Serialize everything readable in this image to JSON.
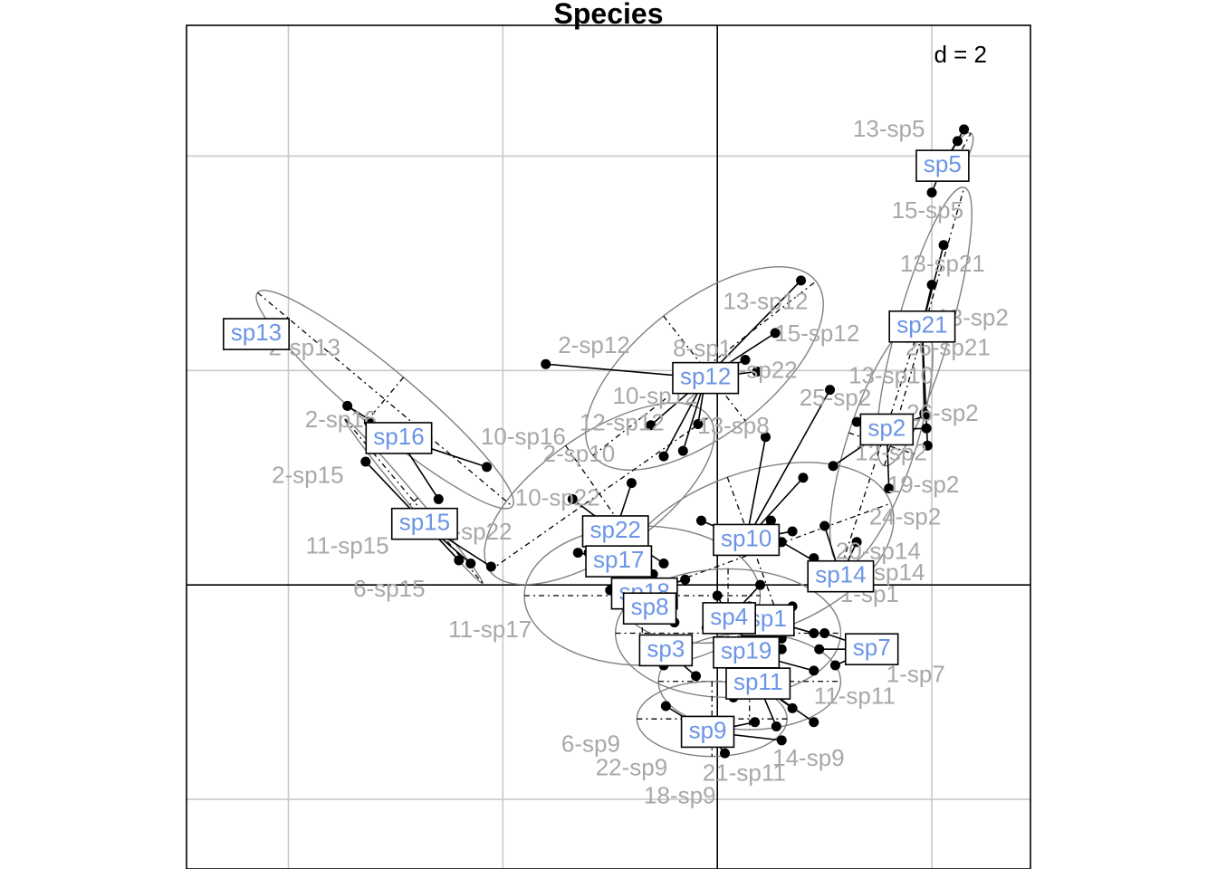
{
  "chart_data": {
    "type": "scatter",
    "title": "Species",
    "scale_label": "d = 2",
    "xlim": [
      -4.95,
      2.92
    ],
    "ylim": [
      -2.65,
      5.22
    ],
    "grid": true,
    "grid_step": 2,
    "colors": {
      "species_label": "#6b95e6",
      "point_label": "#a8a8a8",
      "ellipse": "#808080",
      "grid": "#c8c8c8"
    },
    "ellipses": [
      {
        "name": "sp5",
        "cx": 2.26,
        "cy": 4.02,
        "rx": 0.22,
        "ry": 0.08,
        "angle": 62
      },
      {
        "name": "sp21",
        "cx": 1.93,
        "cy": 2.41,
        "rx": 1.35,
        "ry": 0.25,
        "angle": 74
      },
      {
        "name": "sp12",
        "cx": -0.12,
        "cy": 2.02,
        "rx": 1.32,
        "ry": 0.62,
        "angle": 38
      },
      {
        "name": "sp16",
        "cx": -3.1,
        "cy": 1.73,
        "rx": 1.55,
        "ry": 0.27,
        "angle": -40
      },
      {
        "name": "sp15",
        "cx": -2.83,
        "cy": 0.78,
        "rx": 1.0,
        "ry": 0.05,
        "angle": -50
      },
      {
        "name": "sp2",
        "cx": 1.53,
        "cy": 1.32,
        "rx": 1.2,
        "ry": 0.32,
        "angle": 72
      },
      {
        "name": "sp10",
        "cx": 0.35,
        "cy": 0.3,
        "rx": 1.35,
        "ry": 0.75,
        "angle": 20
      },
      {
        "name": "sp22",
        "cx": -1.1,
        "cy": 0.85,
        "rx": 1.25,
        "ry": 0.55,
        "angle": 35
      },
      {
        "name": "sp18",
        "cx": -0.7,
        "cy": -0.1,
        "rx": 1.1,
        "ry": 0.65,
        "angle": 0
      },
      {
        "name": "sp4",
        "cx": 0.1,
        "cy": -0.45,
        "rx": 1.05,
        "ry": 0.6,
        "angle": 0
      },
      {
        "name": "sp11",
        "cx": 0.3,
        "cy": -0.9,
        "rx": 0.85,
        "ry": 0.45,
        "angle": 0
      },
      {
        "name": "sp9",
        "cx": -0.05,
        "cy": -1.25,
        "rx": 0.7,
        "ry": 0.35,
        "angle": 0
      }
    ],
    "species": [
      {
        "name": "sp5",
        "x": 2.1,
        "y": 3.91,
        "points": [
          [
            2.24,
            4.14
          ],
          [
            2.0,
            3.66
          ],
          [
            2.3,
            4.25
          ]
        ]
      },
      {
        "name": "sp13",
        "x": -4.3,
        "y": 2.34,
        "points": []
      },
      {
        "name": "sp21",
        "x": 1.91,
        "y": 2.41,
        "points": [
          [
            2.11,
            3.17
          ],
          [
            1.93,
            1.6
          ],
          [
            1.96,
            1.3
          ],
          [
            2.0,
            2.8
          ]
        ]
      },
      {
        "name": "sp12",
        "x": -0.11,
        "y": 1.93,
        "points": [
          [
            -1.6,
            2.06
          ],
          [
            0.78,
            2.84
          ],
          [
            0.54,
            2.35
          ],
          [
            0.37,
            1.99
          ],
          [
            -0.62,
            1.49
          ],
          [
            -0.32,
            1.25
          ],
          [
            -0.18,
            1.5
          ],
          [
            -0.5,
            1.2
          ],
          [
            0.26,
            2.1
          ]
        ]
      },
      {
        "name": "sp16",
        "x": -2.97,
        "y": 1.37,
        "points": [
          [
            -3.45,
            1.67
          ],
          [
            -3.25,
            1.52
          ],
          [
            -2.15,
            1.1
          ],
          [
            -2.6,
            0.8
          ]
        ]
      },
      {
        "name": "sp15",
        "x": -2.73,
        "y": 0.57,
        "points": [
          [
            -3.28,
            1.15
          ],
          [
            -2.41,
            0.23
          ],
          [
            -2.11,
            0.17
          ],
          [
            -2.3,
            0.2
          ]
        ]
      },
      {
        "name": "sp2",
        "x": 1.58,
        "y": 1.45,
        "points": [
          [
            1.3,
            1.52
          ],
          [
            1.94,
            1.58
          ],
          [
            1.95,
            1.46
          ],
          [
            1.08,
            1.11
          ],
          [
            1.6,
            0.9
          ]
        ]
      },
      {
        "name": "sp10",
        "x": 0.27,
        "y": 0.42,
        "points": [
          [
            1.05,
            1.82
          ],
          [
            0.45,
            1.38
          ],
          [
            0.8,
            1.0
          ],
          [
            0.5,
            0.6
          ],
          [
            -0.15,
            0.6
          ],
          [
            0.7,
            0.5
          ]
        ]
      },
      {
        "name": "sp22",
        "x": -0.95,
        "y": 0.5,
        "points": [
          [
            -1.35,
            0.8
          ],
          [
            -0.8,
            0.95
          ],
          [
            -1.2,
            0.3
          ],
          [
            -0.5,
            0.2
          ]
        ]
      },
      {
        "name": "sp17",
        "x": -0.92,
        "y": 0.22,
        "points": [
          [
            -1.3,
            0.3
          ],
          [
            -0.6,
            0.1
          ],
          [
            -1.0,
            -0.05
          ]
        ]
      },
      {
        "name": "sp14",
        "x": 1.15,
        "y": 0.08,
        "points": [
          [
            1.0,
            0.55
          ],
          [
            0.6,
            0.4
          ],
          [
            0.9,
            0.25
          ],
          [
            1.3,
            0.4
          ]
        ]
      },
      {
        "name": "sp18",
        "x": -0.68,
        "y": -0.08,
        "points": [
          [
            -0.5,
            -0.05
          ],
          [
            -0.3,
            0.05
          ],
          [
            -0.55,
            -0.3
          ]
        ]
      },
      {
        "name": "sp8",
        "x": -0.63,
        "y": -0.22,
        "points": [
          [
            -0.45,
            -0.15
          ],
          [
            -0.4,
            -0.35
          ]
        ]
      },
      {
        "name": "sp1",
        "x": 0.47,
        "y": -0.33,
        "points": [
          [
            0.7,
            -0.2
          ],
          [
            0.9,
            -0.45
          ],
          [
            0.6,
            -0.5
          ]
        ]
      },
      {
        "name": "sp4",
        "x": 0.11,
        "y": -0.31,
        "points": [
          [
            0.0,
            -0.1
          ],
          [
            0.3,
            -0.2
          ],
          [
            -0.1,
            -0.4
          ],
          [
            0.4,
            0.0
          ]
        ]
      },
      {
        "name": "sp3",
        "x": -0.48,
        "y": -0.61,
        "points": [
          [
            -0.3,
            -0.55
          ],
          [
            -0.2,
            -0.85
          ],
          [
            -0.5,
            -0.75
          ]
        ]
      },
      {
        "name": "sp19",
        "x": 0.27,
        "y": -0.63,
        "points": [
          [
            0.6,
            -0.6
          ],
          [
            0.9,
            -0.8
          ],
          [
            0.1,
            -0.55
          ]
        ]
      },
      {
        "name": "sp7",
        "x": 1.44,
        "y": -0.6,
        "points": [
          [
            1.0,
            -0.45
          ],
          [
            1.1,
            -0.75
          ],
          [
            0.95,
            -0.6
          ]
        ]
      },
      {
        "name": "sp11",
        "x": 0.38,
        "y": -0.92,
        "points": [
          [
            0.7,
            -1.15
          ],
          [
            0.9,
            -1.28
          ],
          [
            0.15,
            -1.05
          ],
          [
            0.55,
            -1.32
          ]
        ]
      },
      {
        "name": "sp9",
        "x": -0.09,
        "y": -1.37,
        "points": [
          [
            -0.48,
            -1.13
          ],
          [
            0.07,
            -1.57
          ],
          [
            0.35,
            -1.28
          ],
          [
            0.6,
            -1.45
          ]
        ]
      }
    ],
    "point_labels": [
      {
        "text": "13-sp5",
        "x": 1.6,
        "y": 4.24
      },
      {
        "text": "15-sp5",
        "x": 1.96,
        "y": 3.48
      },
      {
        "text": "13-sp21",
        "x": 2.1,
        "y": 2.98
      },
      {
        "text": "13-sp12",
        "x": 0.45,
        "y": 2.63
      },
      {
        "text": "13-sp2",
        "x": 2.38,
        "y": 2.48
      },
      {
        "text": "15-sp12",
        "x": 0.93,
        "y": 2.33
      },
      {
        "text": "2-sp13",
        "x": -3.85,
        "y": 2.2
      },
      {
        "text": "2-sp12",
        "x": -1.15,
        "y": 2.22
      },
      {
        "text": "8-sp1",
        "x": -0.14,
        "y": 2.19
      },
      {
        "text": "26-sp21",
        "x": 2.15,
        "y": 2.2
      },
      {
        "text": "13-sp22",
        "x": 0.35,
        "y": 1.99
      },
      {
        "text": "13-sp10",
        "x": 1.62,
        "y": 1.94
      },
      {
        "text": "10-sp12",
        "x": -0.58,
        "y": 1.75
      },
      {
        "text": "25-sp2",
        "x": 1.1,
        "y": 1.73
      },
      {
        "text": "2-sp16",
        "x": -3.51,
        "y": 1.53
      },
      {
        "text": "26-sp2",
        "x": 2.1,
        "y": 1.59
      },
      {
        "text": "12-sp12",
        "x": -0.89,
        "y": 1.5
      },
      {
        "text": "13-sp8",
        "x": 0.15,
        "y": 1.47
      },
      {
        "text": "10-sp16",
        "x": -1.81,
        "y": 1.37
      },
      {
        "text": "2-sp15",
        "x": -3.82,
        "y": 1.01
      },
      {
        "text": "2-sp10",
        "x": -1.29,
        "y": 1.21
      },
      {
        "text": "12-sp2",
        "x": 1.62,
        "y": 1.22
      },
      {
        "text": "19-sp2",
        "x": 1.92,
        "y": 0.92
      },
      {
        "text": "10-sp22",
        "x": -1.49,
        "y": 0.8
      },
      {
        "text": "2-sp22",
        "x": -2.25,
        "y": 0.48
      },
      {
        "text": "24-sp2",
        "x": 1.75,
        "y": 0.62
      },
      {
        "text": "11-sp15",
        "x": -3.45,
        "y": 0.35
      },
      {
        "text": "20-sp14",
        "x": 1.5,
        "y": 0.3
      },
      {
        "text": "1-sp14",
        "x": 1.6,
        "y": 0.1
      },
      {
        "text": "6-sp15",
        "x": -3.06,
        "y": -0.05
      },
      {
        "text": "11-sp17",
        "x": -2.12,
        "y": -0.43
      },
      {
        "text": "1-sp1",
        "x": 1.42,
        "y": -0.1
      },
      {
        "text": "1-sp7",
        "x": 1.85,
        "y": -0.85
      },
      {
        "text": "11-sp11",
        "x": 1.28,
        "y": -1.05
      },
      {
        "text": "6-sp9",
        "x": -1.18,
        "y": -1.5
      },
      {
        "text": "22-sp9",
        "x": -0.8,
        "y": -1.72
      },
      {
        "text": "21-sp11",
        "x": 0.25,
        "y": -1.77
      },
      {
        "text": "14-sp9",
        "x": 0.85,
        "y": -1.63
      },
      {
        "text": "18-sp9",
        "x": -0.35,
        "y": -1.98
      }
    ]
  }
}
